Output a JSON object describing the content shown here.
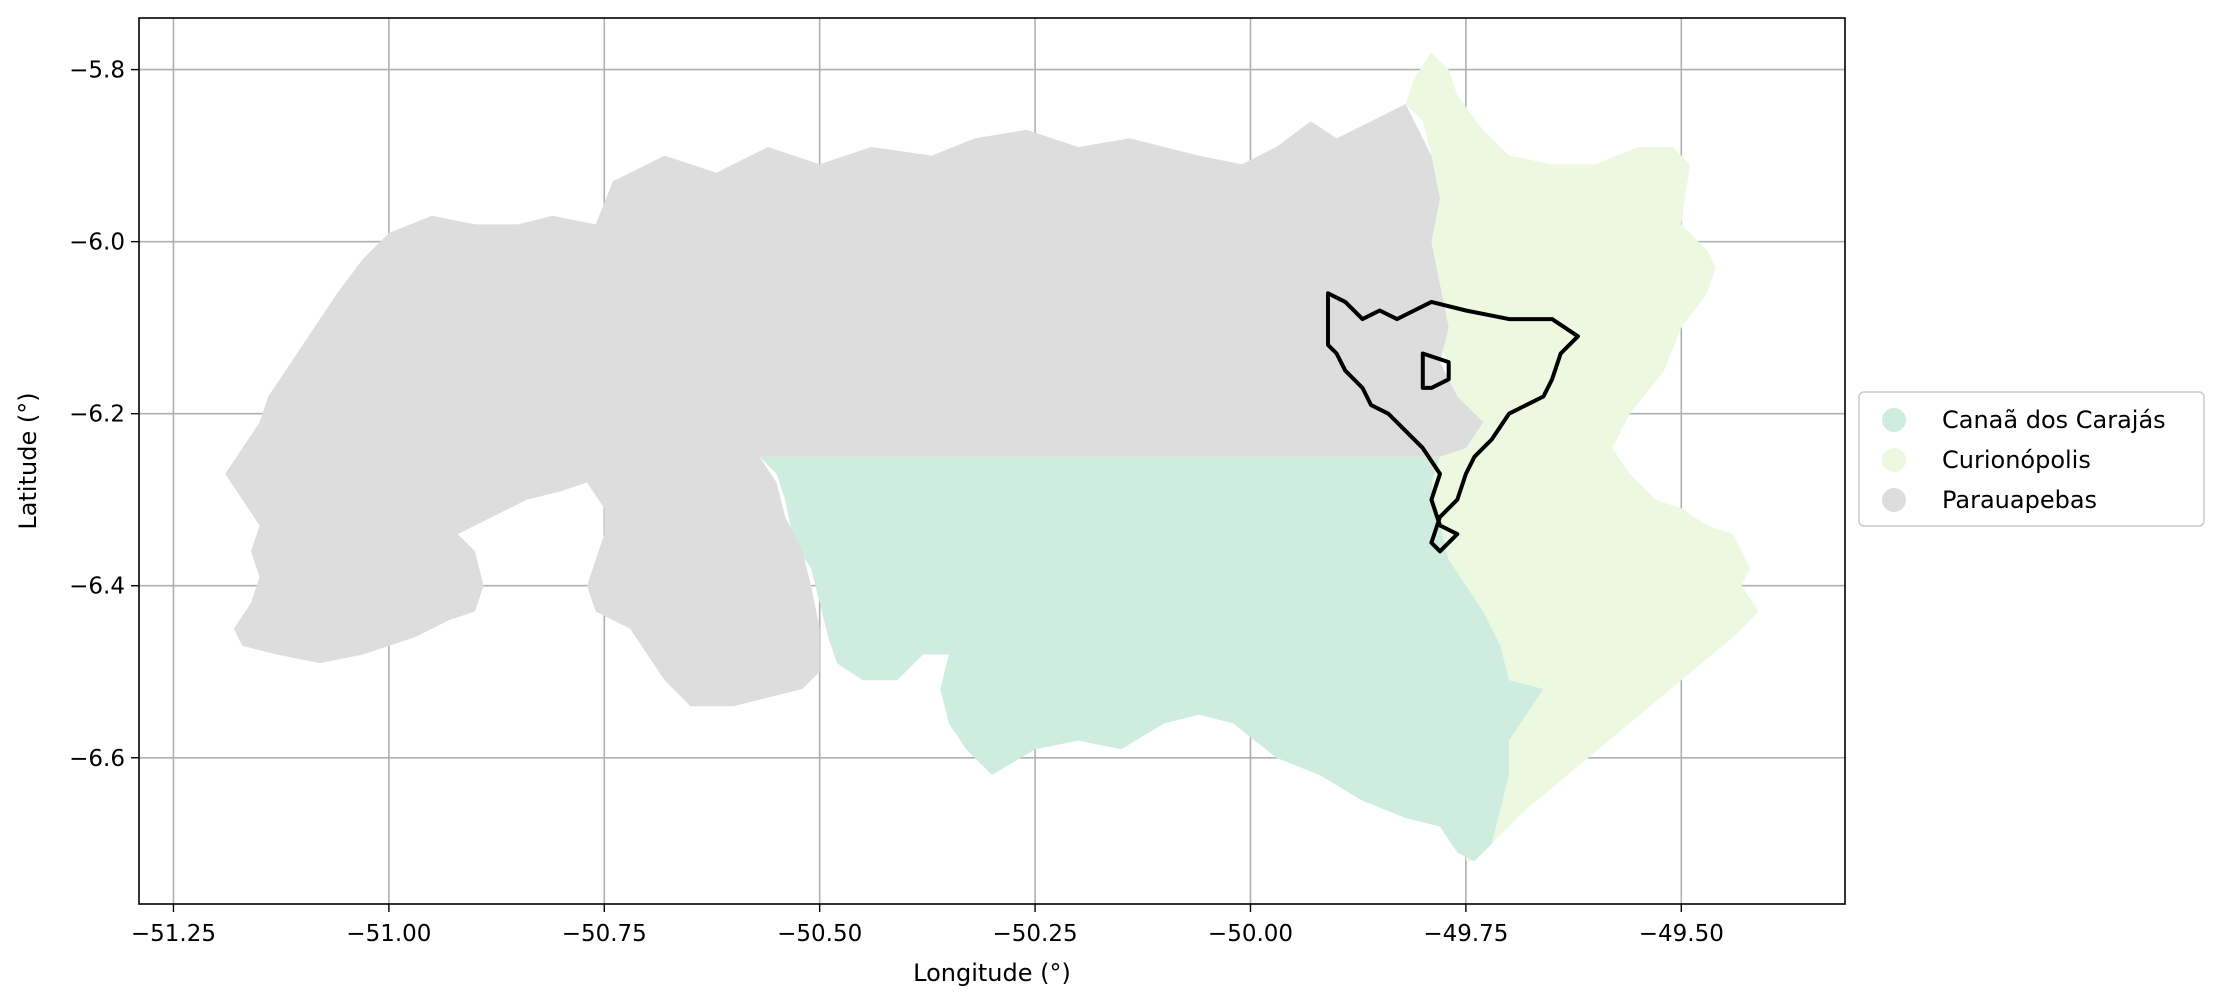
{
  "chart_data": {
    "type": "map",
    "xlabel": "Longitude (°)",
    "ylabel": "Latitude (°)",
    "xlim": [
      -51.29,
      -49.31
    ],
    "ylim": [
      -6.77,
      -5.74
    ],
    "grid": true,
    "legend_placement": "center-right",
    "x_ticks": [
      {
        "value": -51.25,
        "label": "−51.25"
      },
      {
        "value": -51.0,
        "label": "−51.00"
      },
      {
        "value": -50.75,
        "label": "−50.75"
      },
      {
        "value": -50.5,
        "label": "−50.50"
      },
      {
        "value": -50.25,
        "label": "−50.25"
      },
      {
        "value": -50.0,
        "label": "−50.00"
      },
      {
        "value": -49.75,
        "label": "−49.75"
      },
      {
        "value": -49.5,
        "label": "−49.50"
      }
    ],
    "y_ticks": [
      {
        "value": -5.8,
        "label": "−5.8"
      },
      {
        "value": -6.0,
        "label": "−6.0"
      },
      {
        "value": -6.2,
        "label": "−6.2"
      },
      {
        "value": -6.4,
        "label": "−6.4"
      },
      {
        "value": -6.6,
        "label": "−6.6"
      }
    ],
    "regions": [
      {
        "name": "Curionópolis",
        "color": "#edf8e0",
        "outline": [
          [
            -49.81,
            -5.81
          ],
          [
            -49.79,
            -5.78
          ],
          [
            -49.77,
            -5.8
          ],
          [
            -49.76,
            -5.83
          ],
          [
            -49.73,
            -5.87
          ],
          [
            -49.7,
            -5.9
          ],
          [
            -49.65,
            -5.91
          ],
          [
            -49.6,
            -5.91
          ],
          [
            -49.55,
            -5.89
          ],
          [
            -49.51,
            -5.89
          ],
          [
            -49.49,
            -5.91
          ],
          [
            -49.5,
            -5.98
          ],
          [
            -49.47,
            -6.01
          ],
          [
            -49.46,
            -6.03
          ],
          [
            -49.47,
            -6.06
          ],
          [
            -49.5,
            -6.1
          ],
          [
            -49.52,
            -6.15
          ],
          [
            -49.56,
            -6.2
          ],
          [
            -49.58,
            -6.24
          ],
          [
            -49.56,
            -6.27
          ],
          [
            -49.53,
            -6.3
          ],
          [
            -49.5,
            -6.31
          ],
          [
            -49.47,
            -6.33
          ],
          [
            -49.44,
            -6.34
          ],
          [
            -49.43,
            -6.36
          ],
          [
            -49.42,
            -6.38
          ],
          [
            -49.43,
            -6.4
          ],
          [
            -49.41,
            -6.43
          ],
          [
            -49.44,
            -6.46
          ],
          [
            -49.5,
            -6.51
          ],
          [
            -49.56,
            -6.56
          ],
          [
            -49.62,
            -6.61
          ],
          [
            -49.68,
            -6.66
          ],
          [
            -49.74,
            -6.72
          ],
          [
            -49.75,
            -6.72
          ],
          [
            -49.75,
            -6.69
          ],
          [
            -49.73,
            -6.66
          ],
          [
            -49.72,
            -6.63
          ],
          [
            -49.71,
            -6.58
          ],
          [
            -49.7,
            -6.54
          ],
          [
            -49.71,
            -6.51
          ],
          [
            -49.73,
            -6.47
          ],
          [
            -49.74,
            -6.44
          ],
          [
            -49.76,
            -6.41
          ],
          [
            -49.78,
            -6.38
          ],
          [
            -49.79,
            -6.33
          ],
          [
            -49.8,
            -6.28
          ],
          [
            -49.78,
            -6.25
          ],
          [
            -49.77,
            -6.22
          ],
          [
            -49.78,
            -6.19
          ],
          [
            -49.77,
            -6.14
          ],
          [
            -49.79,
            -6.1
          ],
          [
            -49.78,
            -6.05
          ],
          [
            -49.79,
            -6.0
          ],
          [
            -49.78,
            -5.95
          ],
          [
            -49.79,
            -5.9
          ],
          [
            -49.8,
            -5.86
          ],
          [
            -49.82,
            -5.84
          ]
        ]
      },
      {
        "name": "Canaã dos Carajás",
        "color": "#cfece0",
        "outline": [
          [
            -50.57,
            -6.25
          ],
          [
            -49.78,
            -6.25
          ],
          [
            -49.79,
            -6.28
          ],
          [
            -49.78,
            -6.33
          ],
          [
            -49.77,
            -6.37
          ],
          [
            -49.75,
            -6.4
          ],
          [
            -49.73,
            -6.43
          ],
          [
            -49.71,
            -6.47
          ],
          [
            -49.7,
            -6.51
          ],
          [
            -49.66,
            -6.52
          ],
          [
            -49.68,
            -6.55
          ],
          [
            -49.7,
            -6.58
          ],
          [
            -49.7,
            -6.62
          ],
          [
            -49.71,
            -6.66
          ],
          [
            -49.72,
            -6.7
          ],
          [
            -49.74,
            -6.72
          ],
          [
            -49.76,
            -6.71
          ],
          [
            -49.78,
            -6.68
          ],
          [
            -49.82,
            -6.67
          ],
          [
            -49.87,
            -6.65
          ],
          [
            -49.92,
            -6.62
          ],
          [
            -49.97,
            -6.6
          ],
          [
            -50.02,
            -6.56
          ],
          [
            -50.06,
            -6.55
          ],
          [
            -50.1,
            -6.56
          ],
          [
            -50.15,
            -6.59
          ],
          [
            -50.2,
            -6.58
          ],
          [
            -50.25,
            -6.59
          ],
          [
            -50.3,
            -6.62
          ],
          [
            -50.33,
            -6.59
          ],
          [
            -50.35,
            -6.56
          ],
          [
            -50.36,
            -6.52
          ],
          [
            -50.35,
            -6.48
          ],
          [
            -50.38,
            -6.48
          ],
          [
            -50.41,
            -6.51
          ],
          [
            -50.45,
            -6.51
          ],
          [
            -50.48,
            -6.49
          ],
          [
            -50.49,
            -6.46
          ],
          [
            -50.5,
            -6.42
          ],
          [
            -50.51,
            -6.38
          ],
          [
            -50.53,
            -6.35
          ],
          [
            -50.54,
            -6.3
          ],
          [
            -50.55,
            -6.27
          ]
        ]
      },
      {
        "name": "Parauapebas",
        "color": "#dddddd",
        "outline": [
          [
            -51.17,
            -6.47
          ],
          [
            -51.13,
            -6.48
          ],
          [
            -51.08,
            -6.49
          ],
          [
            -51.03,
            -6.48
          ],
          [
            -50.97,
            -6.46
          ],
          [
            -50.93,
            -6.44
          ],
          [
            -50.9,
            -6.43
          ],
          [
            -50.89,
            -6.4
          ],
          [
            -50.9,
            -6.36
          ],
          [
            -50.92,
            -6.34
          ],
          [
            -50.88,
            -6.32
          ],
          [
            -50.84,
            -6.3
          ],
          [
            -50.8,
            -6.29
          ],
          [
            -50.77,
            -6.28
          ],
          [
            -50.75,
            -6.31
          ],
          [
            -50.75,
            -6.34
          ],
          [
            -50.76,
            -6.37
          ],
          [
            -50.77,
            -6.4
          ],
          [
            -50.76,
            -6.43
          ],
          [
            -50.72,
            -6.45
          ],
          [
            -50.7,
            -6.48
          ],
          [
            -50.68,
            -6.51
          ],
          [
            -50.65,
            -6.54
          ],
          [
            -50.6,
            -6.54
          ],
          [
            -50.56,
            -6.53
          ],
          [
            -50.52,
            -6.52
          ],
          [
            -50.5,
            -6.5
          ],
          [
            -50.5,
            -6.45
          ],
          [
            -50.51,
            -6.4
          ],
          [
            -50.52,
            -6.36
          ],
          [
            -50.54,
            -6.32
          ],
          [
            -50.55,
            -6.28
          ],
          [
            -50.57,
            -6.25
          ],
          [
            -49.78,
            -6.25
          ],
          [
            -49.75,
            -6.24
          ],
          [
            -49.73,
            -6.21
          ],
          [
            -49.76,
            -6.18
          ],
          [
            -49.78,
            -6.14
          ],
          [
            -49.77,
            -6.1
          ],
          [
            -49.78,
            -6.05
          ],
          [
            -49.79,
            -6.0
          ],
          [
            -49.78,
            -5.95
          ],
          [
            -49.79,
            -5.9
          ],
          [
            -49.81,
            -5.86
          ],
          [
            -49.82,
            -5.84
          ],
          [
            -49.86,
            -5.86
          ],
          [
            -49.9,
            -5.88
          ],
          [
            -49.93,
            -5.86
          ],
          [
            -49.97,
            -5.89
          ],
          [
            -50.01,
            -5.91
          ],
          [
            -50.06,
            -5.9
          ],
          [
            -50.1,
            -5.89
          ],
          [
            -50.14,
            -5.88
          ],
          [
            -50.2,
            -5.89
          ],
          [
            -50.26,
            -5.87
          ],
          [
            -50.32,
            -5.88
          ],
          [
            -50.37,
            -5.9
          ],
          [
            -50.44,
            -5.89
          ],
          [
            -50.5,
            -5.91
          ],
          [
            -50.56,
            -5.89
          ],
          [
            -50.62,
            -5.92
          ],
          [
            -50.68,
            -5.9
          ],
          [
            -50.74,
            -5.93
          ],
          [
            -50.76,
            -5.98
          ],
          [
            -50.81,
            -5.97
          ],
          [
            -50.85,
            -5.98
          ],
          [
            -50.9,
            -5.98
          ],
          [
            -50.95,
            -5.97
          ],
          [
            -51.0,
            -5.99
          ],
          [
            -51.03,
            -6.02
          ],
          [
            -51.06,
            -6.06
          ],
          [
            -51.08,
            -6.09
          ],
          [
            -51.1,
            -6.12
          ],
          [
            -51.12,
            -6.15
          ],
          [
            -51.14,
            -6.18
          ],
          [
            -51.15,
            -6.21
          ],
          [
            -51.17,
            -6.24
          ],
          [
            -51.19,
            -6.27
          ],
          [
            -51.17,
            -6.3
          ],
          [
            -51.15,
            -6.33
          ],
          [
            -51.16,
            -6.36
          ],
          [
            -51.15,
            -6.39
          ],
          [
            -51.16,
            -6.42
          ],
          [
            -51.18,
            -6.45
          ]
        ]
      }
    ],
    "boundary_lines": [
      {
        "name": "outer-boundary",
        "color": "#000000",
        "points": [
          [
            -49.91,
            -6.06
          ],
          [
            -49.89,
            -6.07
          ],
          [
            -49.87,
            -6.09
          ],
          [
            -49.85,
            -6.08
          ],
          [
            -49.83,
            -6.09
          ],
          [
            -49.81,
            -6.08
          ],
          [
            -49.79,
            -6.07
          ],
          [
            -49.75,
            -6.08
          ],
          [
            -49.7,
            -6.09
          ],
          [
            -49.65,
            -6.09
          ],
          [
            -49.62,
            -6.11
          ],
          [
            -49.64,
            -6.13
          ],
          [
            -49.65,
            -6.16
          ],
          [
            -49.66,
            -6.18
          ],
          [
            -49.68,
            -6.19
          ],
          [
            -49.7,
            -6.2
          ],
          [
            -49.72,
            -6.23
          ],
          [
            -49.74,
            -6.25
          ],
          [
            -49.75,
            -6.27
          ],
          [
            -49.76,
            -6.3
          ],
          [
            -49.78,
            -6.32
          ],
          [
            -49.79,
            -6.35
          ],
          [
            -49.78,
            -6.36
          ],
          [
            -49.76,
            -6.34
          ],
          [
            -49.78,
            -6.33
          ],
          [
            -49.79,
            -6.3
          ],
          [
            -49.78,
            -6.27
          ],
          [
            -49.8,
            -6.24
          ],
          [
            -49.82,
            -6.22
          ],
          [
            -49.84,
            -6.2
          ],
          [
            -49.86,
            -6.19
          ],
          [
            -49.87,
            -6.17
          ],
          [
            -49.89,
            -6.15
          ],
          [
            -49.9,
            -6.13
          ],
          [
            -49.91,
            -6.12
          ],
          [
            -49.91,
            -6.09
          ]
        ]
      },
      {
        "name": "inner-boundary",
        "color": "#000000",
        "points": [
          [
            -49.8,
            -6.13
          ],
          [
            -49.77,
            -6.14
          ],
          [
            -49.77,
            -6.16
          ],
          [
            -49.79,
            -6.17
          ],
          [
            -49.8,
            -6.17
          ]
        ]
      }
    ],
    "legend": [
      {
        "label": "Canaã dos Carajás",
        "color": "#cfece0"
      },
      {
        "label": "Curionópolis",
        "color": "#edf8e0"
      },
      {
        "label": "Parauapebas",
        "color": "#dddddd"
      }
    ]
  }
}
